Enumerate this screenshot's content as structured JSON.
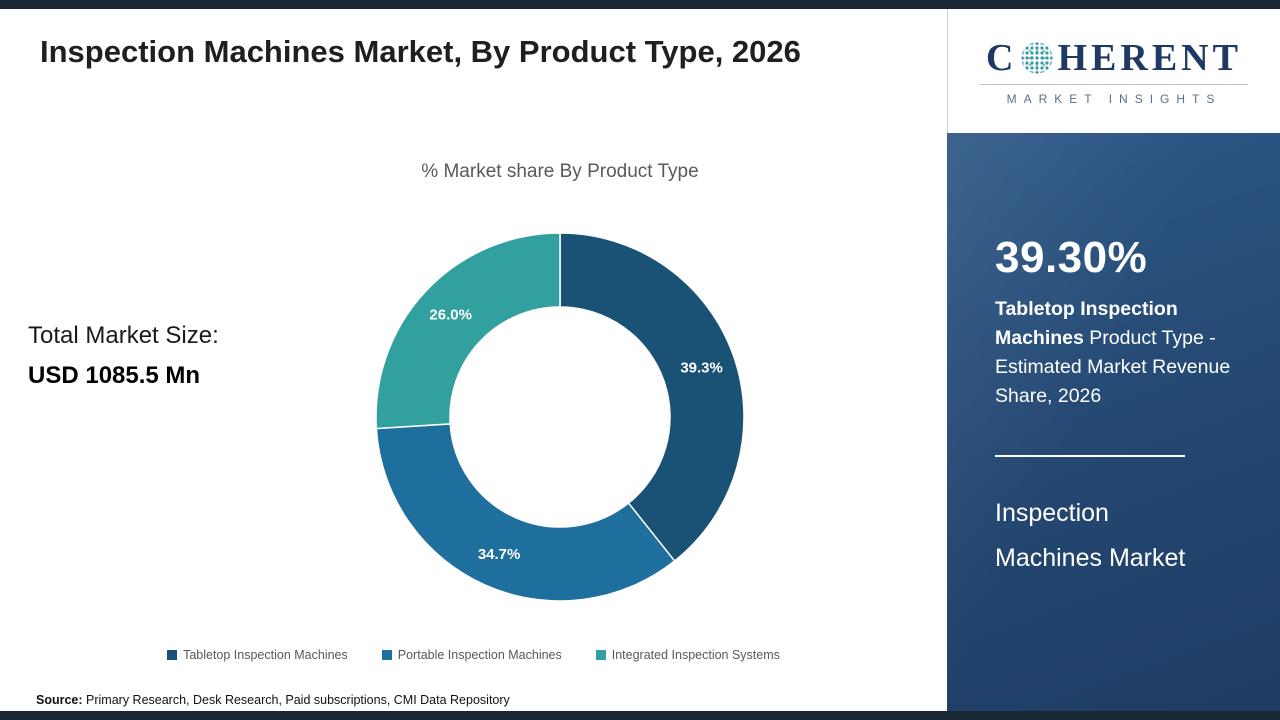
{
  "page": {
    "title": "Inspection Machines Market, By Product Type, 2026",
    "total_label": "Total Market Size:",
    "total_value": "USD 1085.5 Mn",
    "source_label": "Source:",
    "source_text": " Primary Research, Desk Research, Paid subscriptions, CMI Data Repository"
  },
  "chart_data": {
    "type": "pie",
    "donut": true,
    "title": "% Market share By Product Type",
    "categories": [
      "Tabletop Inspection Machines",
      "Portable Inspection Machines",
      "Integrated Inspection Systems"
    ],
    "values": [
      39.3,
      34.7,
      26.0
    ],
    "slice_labels": [
      "39.3%",
      "34.7%",
      "26.0%"
    ],
    "colors": [
      "#1a5276",
      "#1e6f9e",
      "#33a0a0"
    ],
    "legend_position": "bottom",
    "start_angle_deg": 0,
    "direction": "clockwise",
    "inner_radius_ratio": 0.6
  },
  "sidebar": {
    "logo": {
      "prefix": "C",
      "suffix": "HERENT",
      "tagline": "MARKET INSIGHTS"
    },
    "stat_value": "39.30%",
    "stat_bold": "Tabletop Inspection Machines",
    "stat_rest": " Product Type - Estimated Market Revenue Share, 2026",
    "market_line1": "Inspection",
    "market_line2": "Machines Market"
  }
}
